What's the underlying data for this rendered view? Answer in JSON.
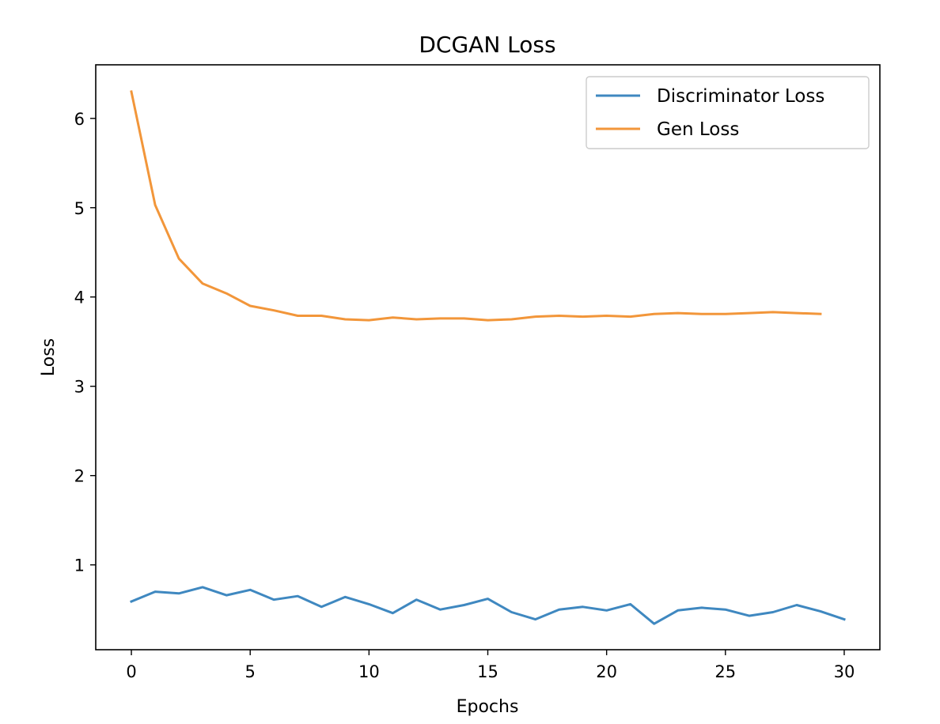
{
  "chart_data": {
    "type": "line",
    "title": "DCGAN Loss",
    "xlabel": "Epochs",
    "ylabel": "Loss",
    "xlim": [
      -1.5,
      31.5
    ],
    "ylim": [
      0.05,
      6.6
    ],
    "xticks": [
      0,
      5,
      10,
      15,
      20,
      25,
      30
    ],
    "yticks": [
      1,
      2,
      3,
      4,
      5,
      6
    ],
    "grid": false,
    "legend_position": "top-right",
    "series": [
      {
        "name": "Discriminator Loss",
        "color": "#3f88c0",
        "x": [
          0,
          1,
          2,
          3,
          4,
          5,
          6,
          7,
          8,
          9,
          10,
          11,
          12,
          13,
          14,
          15,
          16,
          17,
          18,
          19,
          20,
          21,
          22,
          23,
          24,
          25,
          26,
          27,
          28,
          29,
          30
        ],
        "values": [
          0.59,
          0.7,
          0.68,
          0.75,
          0.66,
          0.72,
          0.61,
          0.65,
          0.53,
          0.64,
          0.56,
          0.46,
          0.61,
          0.5,
          0.55,
          0.62,
          0.47,
          0.39,
          0.5,
          0.53,
          0.49,
          0.56,
          0.34,
          0.49,
          0.52,
          0.5,
          0.43,
          0.47,
          0.55,
          0.48,
          0.39
        ]
      },
      {
        "name": "Gen Loss",
        "color": "#f2963a",
        "x": [
          0,
          1,
          2,
          3,
          4,
          5,
          6,
          7,
          8,
          9,
          10,
          11,
          12,
          13,
          14,
          15,
          16,
          17,
          18,
          19,
          20,
          21,
          22,
          23,
          24,
          25,
          26,
          27,
          28,
          29
        ],
        "values": [
          6.3,
          5.03,
          4.43,
          4.15,
          4.04,
          3.9,
          3.85,
          3.79,
          3.79,
          3.75,
          3.74,
          3.77,
          3.75,
          3.76,
          3.76,
          3.74,
          3.75,
          3.78,
          3.79,
          3.78,
          3.79,
          3.78,
          3.81,
          3.82,
          3.81,
          3.81,
          3.82,
          3.83,
          3.82,
          3.81
        ]
      }
    ]
  }
}
